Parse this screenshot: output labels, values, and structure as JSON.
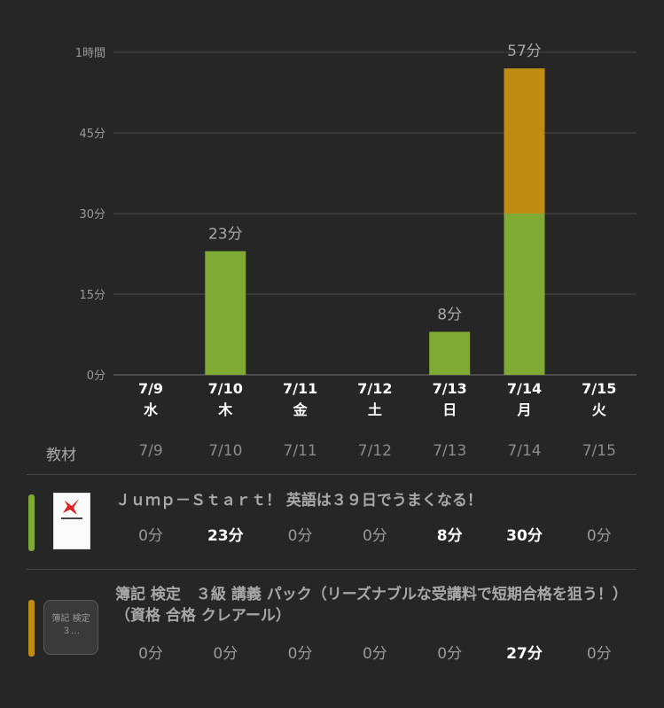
{
  "chart_data": {
    "type": "bar",
    "stacked": true,
    "categories": [
      "7/9",
      "7/10",
      "7/11",
      "7/12",
      "7/13",
      "7/14",
      "7/15"
    ],
    "weekdays": [
      "水",
      "木",
      "金",
      "土",
      "日",
      "月",
      "火"
    ],
    "series": [
      {
        "color": "#7fab35",
        "values": [
          0,
          23,
          0,
          0,
          8,
          30,
          0
        ]
      },
      {
        "color": "#c08d12",
        "values": [
          0,
          0,
          0,
          0,
          0,
          27,
          0
        ]
      }
    ],
    "bar_labels": [
      "",
      "23分",
      "",
      "",
      "8分",
      "57分",
      ""
    ],
    "ylim": [
      0,
      60
    ],
    "yticks": [
      {
        "value": 0,
        "label": "0分"
      },
      {
        "value": 15,
        "label": "15分"
      },
      {
        "value": 30,
        "label": "30分"
      },
      {
        "value": 45,
        "label": "45分"
      },
      {
        "value": 60,
        "label": "1時間"
      }
    ],
    "grid": true
  },
  "table": {
    "header_label": "教材",
    "dates": [
      "7/9",
      "7/10",
      "7/11",
      "7/12",
      "7/13",
      "7/14",
      "7/15"
    ],
    "rows": [
      {
        "title": "Ｊｕｍｐ－Ｓｔａｒｔ！ 英語は３９日でうまくなる！",
        "color": "#7fab35",
        "thumb_icon": "book-cover-jump-start",
        "values": [
          "0分",
          "23分",
          "0分",
          "0分",
          "8分",
          "30分",
          "0分"
        ],
        "bold": [
          false,
          true,
          false,
          false,
          true,
          true,
          false
        ]
      },
      {
        "title": "簿記 検定　３級 講義 パック（リーズナブルな受講料で短期合格を狙う！）（資格 合格 クレアール）",
        "color": "#c08d12",
        "thumb_text": "簿記 検定　３…",
        "values": [
          "0分",
          "0分",
          "0分",
          "0分",
          "0分",
          "27分",
          "0分"
        ],
        "bold": [
          false,
          false,
          false,
          false,
          false,
          true,
          false
        ]
      }
    ]
  }
}
